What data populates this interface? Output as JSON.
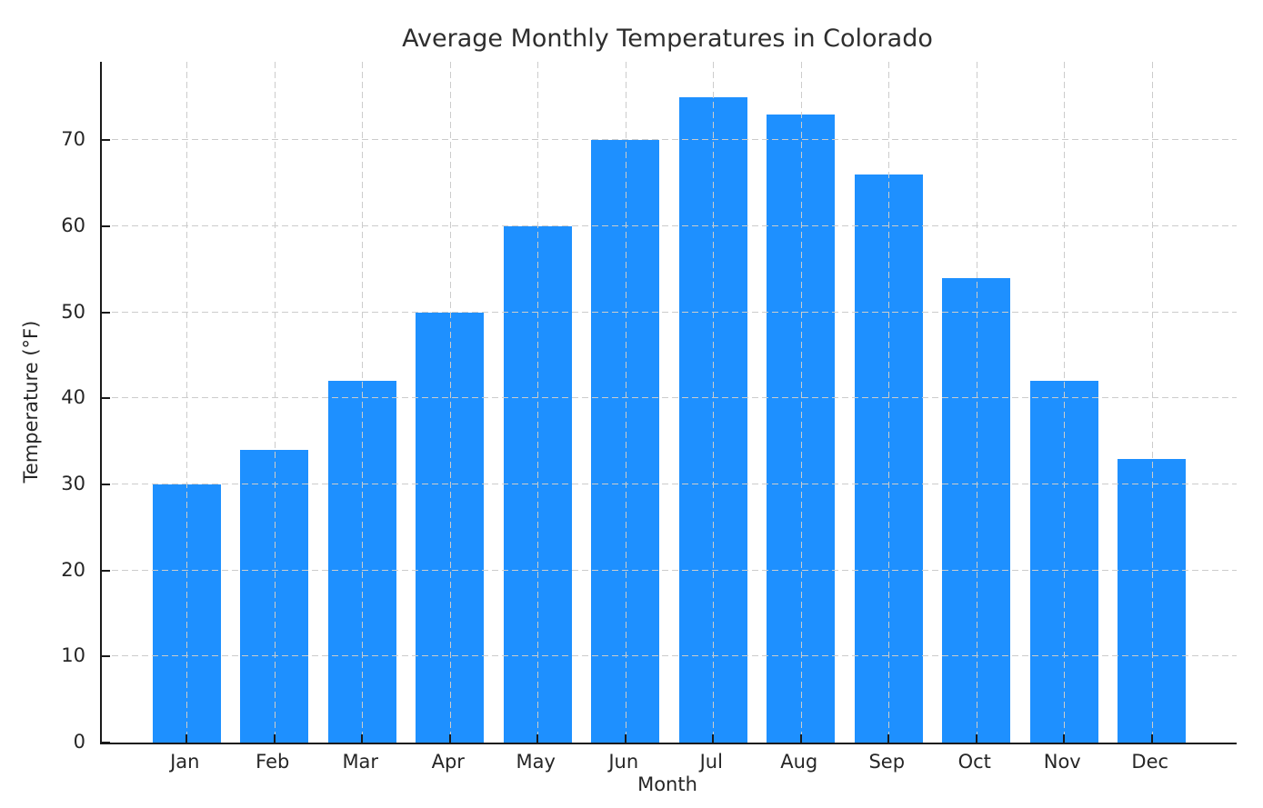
{
  "chart_data": {
    "type": "bar",
    "title": "Average Monthly Temperatures in Colorado",
    "xlabel": "Month",
    "ylabel": "Temperature (°F)",
    "categories": [
      "Jan",
      "Feb",
      "Mar",
      "Apr",
      "May",
      "Jun",
      "Jul",
      "Aug",
      "Sep",
      "Oct",
      "Nov",
      "Dec"
    ],
    "values": [
      30,
      34,
      42,
      50,
      60,
      70,
      75,
      73,
      66,
      54,
      42,
      33
    ],
    "yticks": [
      0,
      10,
      20,
      30,
      40,
      50,
      60,
      70
    ],
    "ylim": [
      0,
      79.1
    ],
    "bar_color": "#1E90FF",
    "grid": {
      "visible": true,
      "axis": "both",
      "style": "dashed",
      "color": "#cccccc",
      "above_bars": true
    },
    "legend_position": "none",
    "background_color": "#ffffff",
    "text_color": "#262626",
    "spine_color": "#1a1a1a"
  }
}
